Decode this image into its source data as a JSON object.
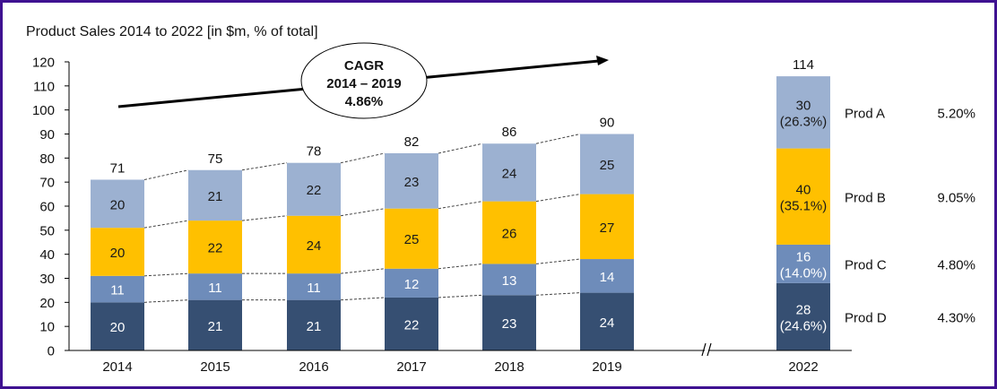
{
  "chart_data": {
    "type": "bar",
    "stacked": true,
    "title": "Product Sales 2014 to 2022 [in $m, % of total]",
    "xlabel": "",
    "ylabel": "",
    "ylim": [
      0,
      120
    ],
    "yticks": [
      0,
      10,
      20,
      30,
      40,
      50,
      60,
      70,
      80,
      90,
      100,
      110,
      120
    ],
    "grid": false,
    "categories": [
      "2014",
      "2015",
      "2016",
      "2017",
      "2018",
      "2019",
      "2022"
    ],
    "axis_break_between": [
      "2019",
      "2022"
    ],
    "totals": [
      71,
      75,
      78,
      82,
      86,
      90,
      114
    ],
    "series": [
      {
        "name": "Prod D",
        "color": "#364f72",
        "label_color": "#ffffff",
        "values": [
          20,
          21,
          21,
          22,
          23,
          24,
          28
        ]
      },
      {
        "name": "Prod C",
        "color": "#6e8cba",
        "label_color": "#ffffff",
        "values": [
          11,
          11,
          11,
          12,
          13,
          14,
          16
        ]
      },
      {
        "name": "Prod B",
        "color": "#ffc000",
        "label_color": "#1a1a1a",
        "values": [
          20,
          22,
          24,
          25,
          26,
          27,
          40
        ]
      },
      {
        "name": "Prod A",
        "color": "#9cb1d1",
        "label_color": "#1a1a1a",
        "values": [
          20,
          21,
          22,
          23,
          24,
          25,
          30
        ]
      }
    ],
    "share_labels_2022": {
      "Prod A": "(26.3%)",
      "Prod B": "(35.1%)",
      "Prod C": "(14.0%)",
      "Prod D": "(24.6%)"
    },
    "legend": [
      {
        "name": "Prod A",
        "cagr": "5.20%"
      },
      {
        "name": "Prod B",
        "cagr": "9.05%"
      },
      {
        "name": "Prod C",
        "cagr": "4.80%"
      },
      {
        "name": "Prod D",
        "cagr": "4.30%"
      }
    ],
    "annotation": {
      "lines": [
        "CAGR",
        "2014 – 2019",
        "4.86%"
      ]
    },
    "break_mark": "//"
  },
  "frame_color": "#3f1291"
}
